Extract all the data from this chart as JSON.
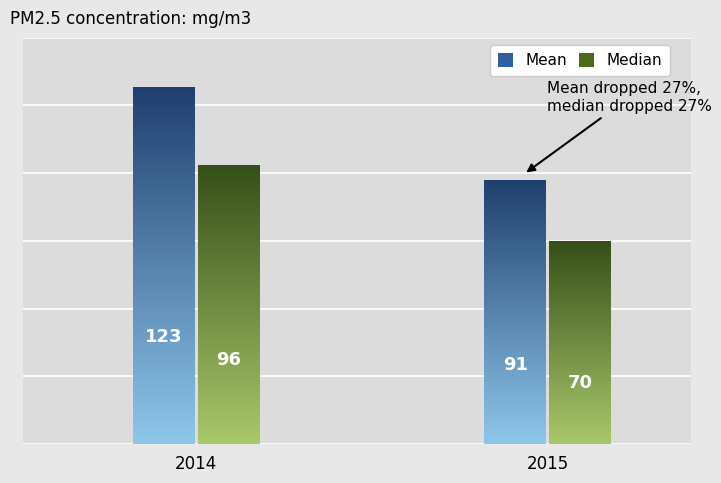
{
  "title": "PM2.5 concentration: mg/m3",
  "categories": [
    "2014",
    "2015"
  ],
  "mean_values": [
    123,
    91
  ],
  "median_values": [
    96,
    70
  ],
  "mean_color_top": "#1f3f6e",
  "mean_color_bottom": "#8ec6ea",
  "median_color_top": "#364e18",
  "median_color_bottom": "#a8c86a",
  "bar_width": 0.35,
  "bar_gap": 0.02,
  "group_centers": [
    1.0,
    3.0
  ],
  "annotation_text": "Mean dropped 27%,\nmedian dropped 27%",
  "legend_mean_label": "Mean",
  "legend_median_label": "Median",
  "legend_mean_color": "#2e5fa3",
  "legend_median_color": "#4a6b1a",
  "ylim": [
    0,
    140
  ],
  "xlim": [
    0.2,
    4.0
  ],
  "background_color": "#e8e8e8",
  "plot_bg_color": "#dcdcdc",
  "value_fontsize": 13,
  "title_fontsize": 12,
  "label_fontsize": 12,
  "xtick_positions": [
    1.175,
    3.175
  ],
  "grid_color": "#ffffff",
  "grid_linewidth": 1.2
}
